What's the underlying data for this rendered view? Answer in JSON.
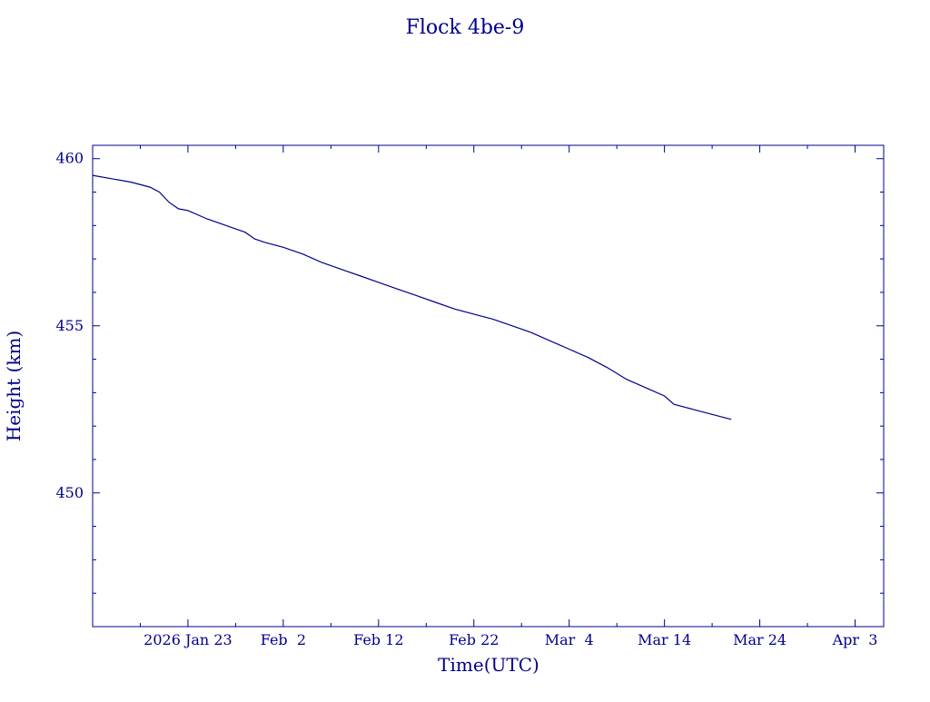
{
  "chart_data": {
    "type": "line",
    "title": "Flock 4be-9",
    "xlabel": "Time(UTC)",
    "ylabel": "Height (km)",
    "color": "#00008b",
    "grid": false,
    "legend": "none",
    "xlim": [
      "2026-01-13",
      "2026-04-06"
    ],
    "ylim": [
      446,
      460.4
    ],
    "x_tick_labels": [
      {
        "date": "2026-01-23",
        "label": "2026 Jan 23"
      },
      {
        "date": "2026-02-02",
        "label": "Feb  2"
      },
      {
        "date": "2026-02-12",
        "label": "Feb 12"
      },
      {
        "date": "2026-02-22",
        "label": "Feb 22"
      },
      {
        "date": "2026-03-04",
        "label": "Mar  4"
      },
      {
        "date": "2026-03-14",
        "label": "Mar 14"
      },
      {
        "date": "2026-03-24",
        "label": "Mar 24"
      },
      {
        "date": "2026-04-03",
        "label": "Apr  3"
      }
    ],
    "x_minor_ticks": [
      "2026-01-18",
      "2026-01-28",
      "2026-02-07",
      "2026-02-17",
      "2026-02-27",
      "2026-03-09",
      "2026-03-19",
      "2026-03-29"
    ],
    "y_ticks": [
      450,
      455,
      460
    ],
    "y_minor_ticks": [
      447,
      448,
      449,
      451,
      452,
      453,
      454,
      456,
      457,
      458,
      459
    ],
    "series": [
      {
        "x": [
          "2026-01-13",
          "2026-01-15",
          "2026-01-17",
          "2026-01-19",
          "2026-01-20",
          "2026-01-21",
          "2026-01-22",
          "2026-01-23",
          "2026-01-25",
          "2026-01-27",
          "2026-01-29",
          "2026-01-30",
          "2026-01-31",
          "2026-02-02",
          "2026-02-04",
          "2026-02-06",
          "2026-02-08",
          "2026-02-10",
          "2026-02-12",
          "2026-02-14",
          "2026-02-16",
          "2026-02-18",
          "2026-02-20",
          "2026-02-22",
          "2026-02-24",
          "2026-02-26",
          "2026-02-28",
          "2026-03-02",
          "2026-03-04",
          "2026-03-06",
          "2026-03-08",
          "2026-03-10",
          "2026-03-12",
          "2026-03-14",
          "2026-03-15",
          "2026-03-17",
          "2026-03-19",
          "2026-03-21"
        ],
        "y": [
          459.5,
          459.4,
          459.3,
          459.15,
          459.0,
          458.7,
          458.5,
          458.45,
          458.2,
          458.0,
          457.8,
          457.6,
          457.5,
          457.35,
          457.15,
          456.9,
          456.7,
          456.5,
          456.3,
          456.1,
          455.9,
          455.7,
          455.5,
          455.35,
          455.2,
          455.0,
          454.8,
          454.55,
          454.3,
          454.05,
          453.75,
          453.4,
          453.15,
          452.9,
          452.65,
          452.5,
          452.35,
          452.2
        ]
      }
    ]
  }
}
